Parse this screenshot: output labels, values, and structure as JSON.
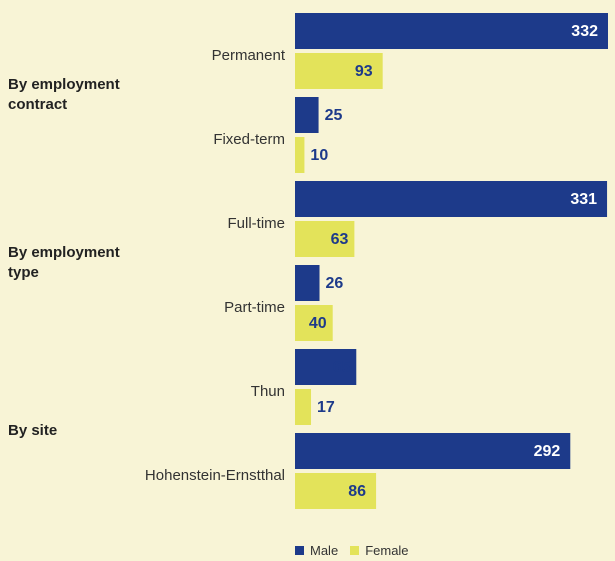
{
  "chart_data": {
    "type": "bar",
    "orientation": "horizontal",
    "groups": [
      {
        "label": "By employment contract",
        "label_lines": [
          "By employment",
          "contract"
        ],
        "categories": [
          "Permanent",
          "Fixed-term"
        ]
      },
      {
        "label": "By employment type",
        "label_lines": [
          "By employment",
          "type"
        ],
        "categories": [
          "Full-time",
          "Part-time"
        ]
      },
      {
        "label": "By site",
        "label_lines": [
          "By site"
        ],
        "categories": [
          "Thun",
          "Hohenstein-Ernstthal"
        ]
      }
    ],
    "categories": [
      "Permanent",
      "Fixed-term",
      "Full-time",
      "Part-time",
      "Thun",
      "Hohenstein-Ernstthal"
    ],
    "series": [
      {
        "name": "Male",
        "color": "#1d3a8a",
        "values": [
          332,
          25,
          331,
          26,
          65,
          292
        ]
      },
      {
        "name": "Female",
        "color": "#e3e35a",
        "values": [
          93,
          10,
          63,
          40,
          17,
          86
        ]
      }
    ],
    "xlim": [
      0,
      332
    ],
    "grid": false,
    "legend_position": "bottom"
  }
}
